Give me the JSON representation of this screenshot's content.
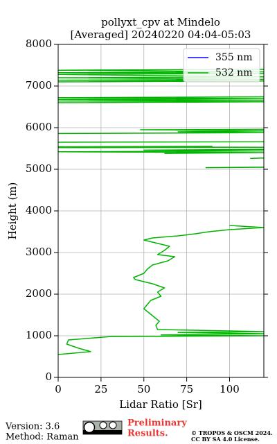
{
  "chart_data": {
    "type": "line",
    "orientation": "vertical",
    "title": "pollyxt_cpv at Mindelo",
    "subtitle": "[Averaged] 20240220 04:04-05:03",
    "xlabel": "Lidar Ratio [Sr]",
    "ylabel": "Height (m)",
    "heights": [
      550,
      620,
      700,
      800,
      900,
      980,
      1000,
      1020,
      1050,
      1080,
      1100,
      1150,
      1250,
      1350,
      1450,
      1550,
      1650,
      1750,
      1850,
      1950,
      2050,
      2150,
      2250,
      2350,
      2400,
      2500,
      2600,
      2700,
      2800,
      2900,
      2950,
      3050,
      3150,
      3250,
      3300,
      3350,
      3400,
      3450,
      3500,
      3550,
      3600,
      3650,
      3700,
      5040,
      5050,
      5100,
      5260,
      5270,
      5350,
      5380,
      5400,
      5420,
      5440,
      5460,
      5480,
      5500,
      5520,
      5530,
      5540,
      5550,
      5600,
      5650,
      5660,
      5700,
      5860,
      5880,
      5900,
      5920,
      5950,
      5960,
      6000,
      6600,
      6620,
      6640,
      6660,
      6680,
      6700,
      6720,
      6740,
      6800,
      7100,
      7120,
      7140,
      7160,
      7200,
      7220,
      7280,
      7300,
      7320,
      7340,
      7380,
      7400
    ],
    "series": [
      {
        "name": "355 nm",
        "color": "#0000ff",
        "values": [
          null,
          null,
          null,
          null,
          null,
          null,
          null,
          null,
          null,
          null,
          null,
          null,
          null,
          null,
          null,
          null,
          null,
          null,
          null,
          null,
          null,
          null,
          null,
          null,
          null,
          null,
          null,
          null,
          null,
          null,
          null,
          null,
          null,
          null,
          null,
          null,
          null,
          null,
          null,
          null,
          null,
          null,
          null,
          null,
          null,
          null,
          null,
          null,
          null,
          null,
          null,
          null,
          null,
          null,
          null,
          null,
          null,
          null,
          null,
          null,
          null,
          null,
          null,
          null,
          null,
          null,
          null,
          null,
          null,
          null,
          null,
          null,
          null,
          null,
          null,
          null,
          null,
          null,
          null,
          null,
          null,
          null,
          null,
          null,
          null,
          null,
          null,
          null,
          null,
          null,
          null,
          null
        ]
      },
      {
        "name": "532 nm",
        "color": "#00b400",
        "values": [
          0,
          19,
          12,
          5,
          6,
          30,
          120,
          60,
          120,
          70,
          120,
          58,
          57,
          59,
          56,
          53,
          50,
          52,
          54,
          60,
          58,
          62,
          55,
          45,
          44,
          50,
          52,
          55,
          64,
          68,
          58,
          62,
          65,
          55,
          50,
          55,
          70,
          80,
          88,
          100,
          120,
          100,
          null,
          86,
          120,
          null,
          112,
          120,
          null,
          62,
          120,
          0,
          120,
          50,
          120,
          null,
          0,
          120,
          0,
          90,
          null,
          0,
          120,
          null,
          0,
          120,
          70,
          120,
          48,
          120,
          null,
          0,
          120,
          0,
          120,
          0,
          120,
          0,
          120,
          null,
          0,
          120,
          0,
          120,
          0,
          120,
          0,
          120,
          0,
          120,
          0,
          120
        ]
      }
    ],
    "xlim": [
      0,
      120
    ],
    "xticks": [
      0,
      25,
      50,
      75,
      100
    ],
    "ylim": [
      0,
      8000
    ],
    "yticks": [
      0,
      1000,
      2000,
      3000,
      4000,
      5000,
      6000,
      7000,
      8000
    ],
    "grid": true,
    "legend": "upper right"
  },
  "footer": {
    "version": "Version: 3.6",
    "method": "Method: Raman",
    "status": [
      "Preliminary",
      "Results."
    ],
    "copyright": [
      "© TROPOS & OSCM 2024.",
      "CC BY SA 4.0 License."
    ]
  }
}
